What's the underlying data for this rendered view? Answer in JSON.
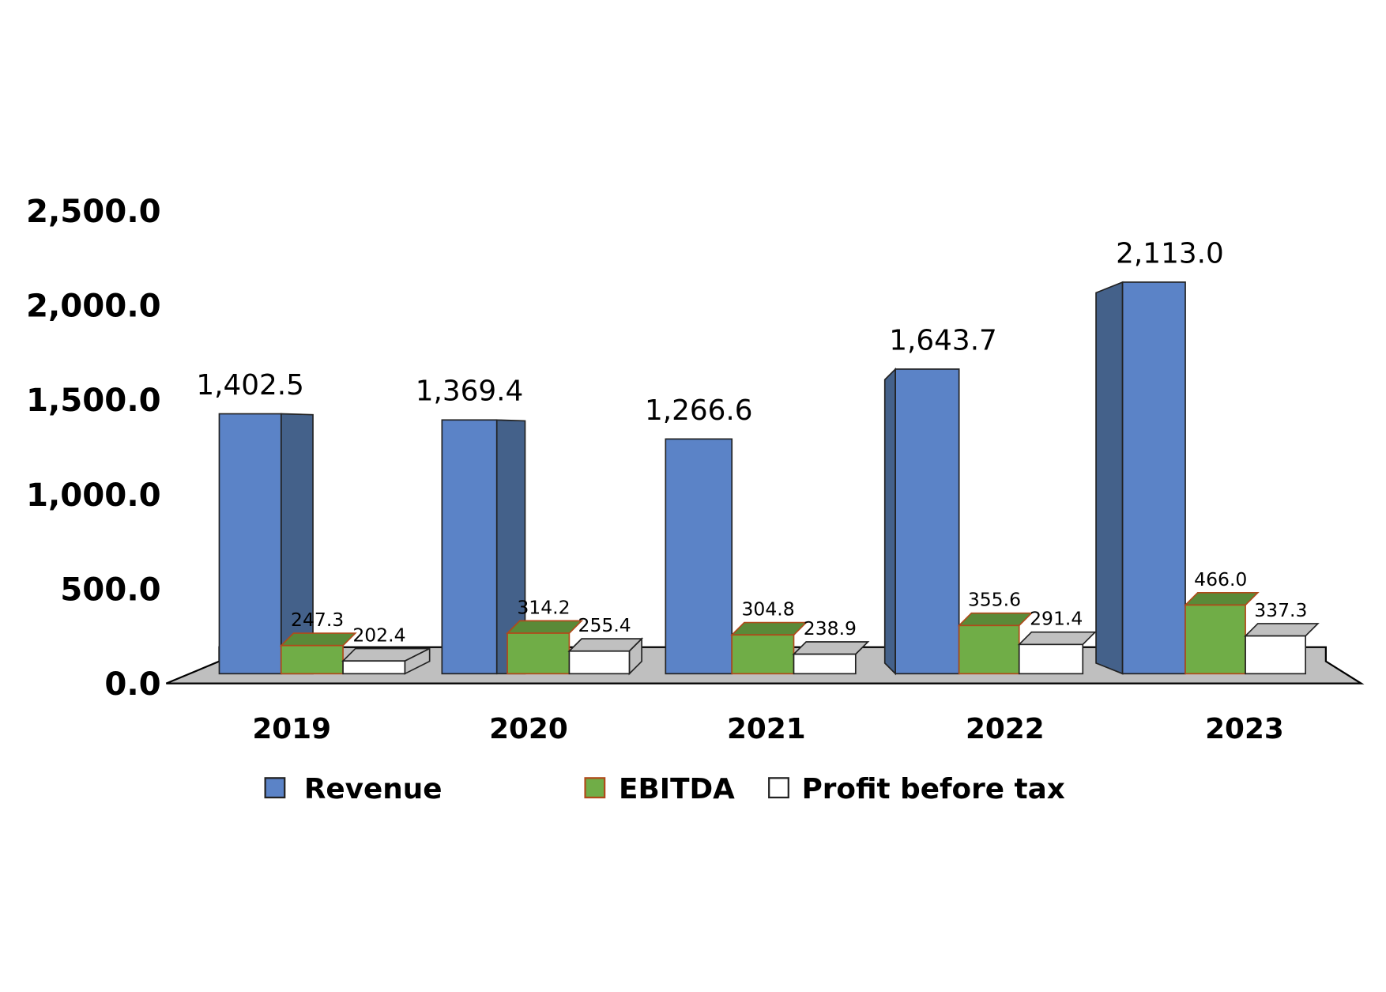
{
  "chart_data": {
    "type": "bar",
    "style": "3d-clustered-column",
    "title": "",
    "xlabel": "",
    "ylabel": "",
    "categories": [
      "2019",
      "2020",
      "2021",
      "2022",
      "2023"
    ],
    "ylim": [
      0,
      2500
    ],
    "yticks": [
      0,
      500,
      1000,
      1500,
      2000,
      2500
    ],
    "ytick_labels": [
      "0.0",
      "500.0",
      "1,000.0",
      "1,500.0",
      "2,000.0",
      "2,500.0"
    ],
    "grid": false,
    "legend_position": "bottom",
    "series": [
      {
        "name": "Revenue",
        "color": "#5b83c7",
        "side_color": "#44618a",
        "edge_color": "#222222",
        "values": [
          1402.5,
          1369.4,
          1266.6,
          1643.7,
          2113.0
        ],
        "labels": [
          "1,402.5",
          "1,369.4",
          "1,266.6",
          "1,643.7",
          "2,113.0"
        ]
      },
      {
        "name": "EBITDA",
        "color": "#70ad47",
        "side_color": "#5a8a38",
        "edge_color": "#b04a1a",
        "values": [
          247.3,
          314.2,
          304.8,
          355.6,
          466.0
        ],
        "labels": [
          "247.3",
          "314.2",
          "304.8",
          "355.6",
          "466.0"
        ]
      },
      {
        "name": "Profit before tax",
        "color": "#ffffff",
        "side_color": "#c0c0c0",
        "edge_color": "#222222",
        "values": [
          202.4,
          255.4,
          238.9,
          291.4,
          337.3
        ],
        "labels": [
          "202.4",
          "255.4",
          "238.9",
          "291.4",
          "337.3"
        ]
      }
    ],
    "floor_color": "#bfbfbf"
  }
}
